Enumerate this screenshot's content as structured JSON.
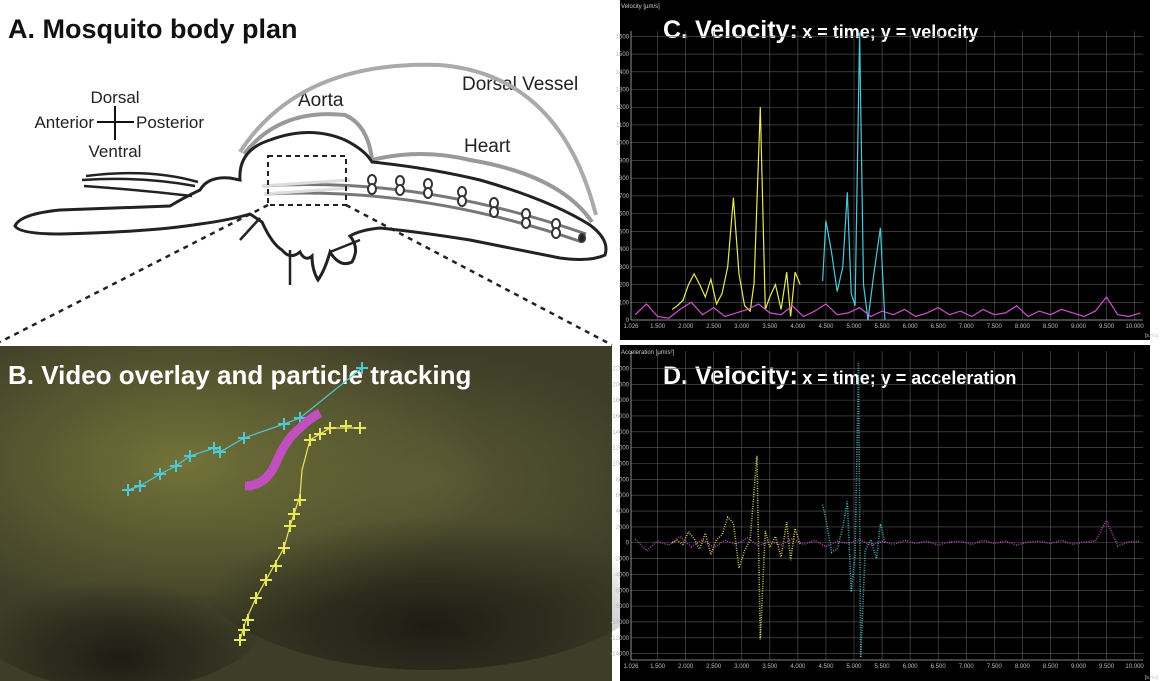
{
  "panel_a": {
    "title": "A. Mosquito body plan",
    "dorsal": "Dorsal",
    "anterior": "Anterior",
    "posterior": "Posterior",
    "ventral": "Ventral",
    "aorta": "Aorta",
    "dorsal_vessel": "Dorsal Vessel",
    "heart": "Heart"
  },
  "panel_b": {
    "title": "B. Video overlay and particle tracking"
  },
  "chart_data": [
    {
      "type": "line",
      "title": "C. Velocity:",
      "subtitle": "x = time; y = velocity",
      "y_label": "Velocity [µm/s]",
      "x_label": "[s.ms]",
      "xlim": [
        1.026,
        10.15
      ],
      "ylim": [
        0,
        1630
      ],
      "grid": true,
      "line_style": "solid",
      "xticks": [
        1.026,
        {
          "value": 1.5,
          "label": "1.500"
        },
        {
          "value": 2,
          "label": "2.000"
        },
        {
          "value": 2.5,
          "label": "2.500"
        },
        {
          "value": 3,
          "label": "3.000"
        },
        {
          "value": 3.5,
          "label": "3.500"
        },
        {
          "value": 4,
          "label": "4.000"
        },
        {
          "value": 4.5,
          "label": "4.500"
        },
        {
          "value": 5,
          "label": "5.000"
        },
        {
          "value": 5.5,
          "label": "5.500"
        },
        {
          "value": 6,
          "label": "6.000"
        },
        {
          "value": 6.5,
          "label": "6.500"
        },
        {
          "value": 7,
          "label": "7.000"
        },
        {
          "value": 7.5,
          "label": "7.500"
        },
        {
          "value": 8,
          "label": "8.000"
        },
        {
          "value": 8.5,
          "label": "8.500"
        },
        {
          "value": 9,
          "label": "9.000"
        },
        {
          "value": 9.5,
          "label": "9.500"
        },
        {
          "value": 10,
          "label": "10.000"
        }
      ],
      "yticks": [
        0,
        100,
        200,
        300,
        400,
        500,
        600,
        700,
        800,
        900,
        1000,
        1100,
        1200,
        1300,
        1400,
        1500,
        1600
      ],
      "series": [
        {
          "color": "#e8e85a",
          "x": [
            1.76,
            1.85,
            1.95,
            2.05,
            2.15,
            2.25,
            2.35,
            2.45,
            2.55,
            2.65,
            2.75,
            2.85,
            2.95,
            3.05,
            3.15,
            3.22,
            3.33,
            3.42,
            3.5,
            3.6,
            3.7,
            3.8,
            3.87,
            3.95,
            4.04
          ],
          "values": [
            60,
            80,
            110,
            200,
            260,
            200,
            130,
            230,
            90,
            150,
            300,
            690,
            260,
            80,
            50,
            210,
            1200,
            60,
            130,
            200,
            60,
            270,
            20,
            270,
            200
          ]
        },
        {
          "color": "#4fc8d8",
          "x": [
            4.44,
            4.5,
            4.6,
            4.7,
            4.8,
            4.88,
            4.95,
            5.02,
            5.1,
            5.17,
            5.25,
            5.35,
            5.47,
            5.55
          ],
          "values": [
            220,
            560,
            380,
            160,
            300,
            720,
            150,
            80,
            1620,
            200,
            0,
            250,
            520,
            0
          ]
        },
        {
          "color": "#d050d0",
          "x": [
            1.1,
            1.3,
            1.5,
            1.7,
            1.9,
            2.1,
            2.3,
            2.5,
            2.7,
            2.9,
            3.1,
            3.3,
            3.5,
            3.7,
            3.9,
            4.1,
            4.3,
            4.5,
            4.7,
            4.9,
            5.1,
            5.3,
            5.5,
            5.7,
            5.9,
            6.1,
            6.3,
            6.5,
            6.7,
            6.9,
            7.1,
            7.3,
            7.5,
            7.7,
            7.9,
            8.1,
            8.3,
            8.5,
            8.7,
            8.9,
            9.1,
            9.3,
            9.5,
            9.7,
            9.9,
            10.1
          ],
          "values": [
            30,
            90,
            20,
            10,
            60,
            100,
            30,
            70,
            20,
            40,
            60,
            90,
            40,
            30,
            80,
            20,
            50,
            90,
            30,
            40,
            70,
            20,
            50,
            30,
            60,
            20,
            40,
            70,
            30,
            50,
            20,
            60,
            30,
            40,
            80,
            20,
            50,
            30,
            60,
            40,
            20,
            50,
            130,
            30,
            20,
            40
          ]
        }
      ]
    },
    {
      "type": "line",
      "title": "D. Velocity:",
      "subtitle": "x = time; y = acceleration",
      "y_label": "Acceleration [µm/s²]",
      "x_label": "[s.ms]",
      "xlim": [
        1.026,
        10.15
      ],
      "ylim": [
        -14800,
        24200
      ],
      "grid": true,
      "line_style": "dotted",
      "xticks": [
        1.026,
        {
          "value": 1.5,
          "label": "1.500"
        },
        {
          "value": 2,
          "label": "2.000"
        },
        {
          "value": 2.5,
          "label": "2.500"
        },
        {
          "value": 3,
          "label": "3.000"
        },
        {
          "value": 3.5,
          "label": "3.500"
        },
        {
          "value": 4,
          "label": "4.000"
        },
        {
          "value": 4.5,
          "label": "4.500"
        },
        {
          "value": 5,
          "label": "5.000"
        },
        {
          "value": 5.5,
          "label": "5.500"
        },
        {
          "value": 6,
          "label": "6.000"
        },
        {
          "value": 6.5,
          "label": "6.500"
        },
        {
          "value": 7,
          "label": "7.000"
        },
        {
          "value": 7.5,
          "label": "7.500"
        },
        {
          "value": 8,
          "label": "8.000"
        },
        {
          "value": 8.5,
          "label": "8.500"
        },
        {
          "value": 9,
          "label": "9.000"
        },
        {
          "value": 9.5,
          "label": "9.500"
        },
        {
          "value": 10,
          "label": "10.000"
        }
      ],
      "yticks": [
        -14000,
        -12000,
        -10000,
        -8000,
        -6000,
        -4000,
        -2000,
        0,
        2000,
        4000,
        6000,
        8000,
        10000,
        12000,
        14000,
        16000,
        18000,
        20000,
        22000
      ],
      "series": [
        {
          "color": "#e8e85a",
          "x": [
            1.76,
            1.85,
            1.95,
            2.05,
            2.15,
            2.25,
            2.35,
            2.45,
            2.55,
            2.65,
            2.75,
            2.85,
            2.95,
            3.05,
            3.15,
            3.27,
            3.33,
            3.42,
            3.5,
            3.6,
            3.7,
            3.8,
            3.87,
            3.95,
            4.04
          ],
          "values": [
            0,
            300,
            -200,
            1400,
            500,
            -800,
            1200,
            -1500,
            400,
            1000,
            3200,
            2500,
            -3200,
            -1000,
            400,
            11000,
            -12200,
            1500,
            -600,
            800,
            -1800,
            2600,
            -2200,
            1800,
            -200
          ]
        },
        {
          "color": "#4fc8d8",
          "x": [
            4.44,
            4.5,
            4.6,
            4.7,
            4.8,
            4.88,
            4.95,
            5.02,
            5.08,
            5.12,
            5.2,
            5.3,
            5.4,
            5.47,
            5.55
          ],
          "values": [
            4800,
            3000,
            -1200,
            -800,
            2000,
            5200,
            -6200,
            -1500,
            22800,
            -14500,
            -1000,
            400,
            -2000,
            2400,
            0
          ]
        },
        {
          "color": "#d050d0",
          "x": [
            1.1,
            1.3,
            1.5,
            1.7,
            1.9,
            2.1,
            2.3,
            2.5,
            2.7,
            2.9,
            3.1,
            3.3,
            3.5,
            3.7,
            3.9,
            4.1,
            4.3,
            4.5,
            4.7,
            4.9,
            5.1,
            5.3,
            5.5,
            5.7,
            5.9,
            6.1,
            6.3,
            6.5,
            6.7,
            6.9,
            7.1,
            7.3,
            7.5,
            7.7,
            7.9,
            8.1,
            8.3,
            8.5,
            8.7,
            8.9,
            9.1,
            9.3,
            9.5,
            9.7,
            9.9,
            10.1
          ],
          "values": [
            500,
            -1000,
            200,
            -300,
            800,
            -500,
            400,
            -600,
            300,
            -200,
            600,
            -400,
            200,
            -300,
            500,
            -200,
            300,
            -500,
            200,
            -100,
            400,
            -300,
            200,
            -200,
            300,
            -100,
            200,
            -300,
            100,
            200,
            -200,
            300,
            -100,
            200,
            -300,
            100,
            200,
            -100,
            300,
            -200,
            100,
            200,
            2800,
            -400,
            100,
            200
          ]
        }
      ]
    }
  ]
}
